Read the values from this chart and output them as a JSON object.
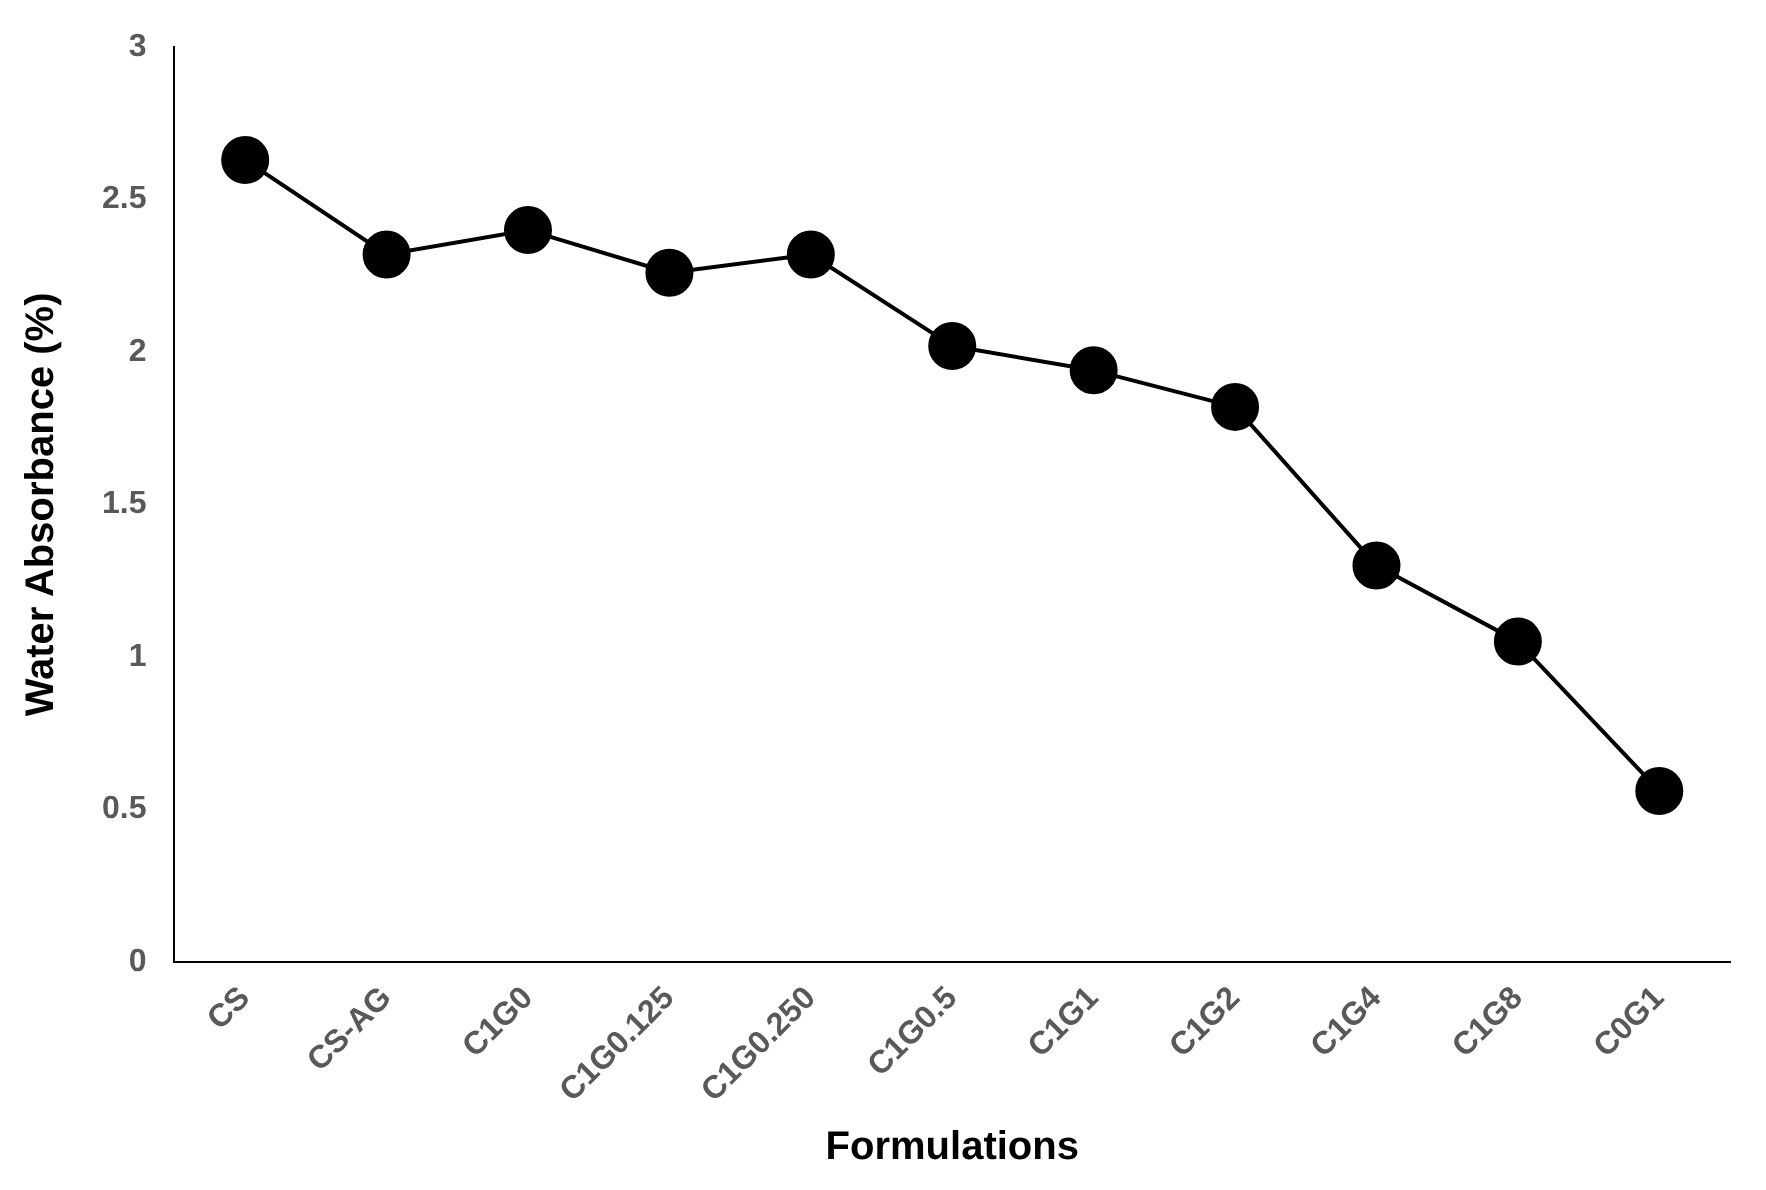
{
  "chart_data": {
    "type": "line",
    "xlabel": "Formulations",
    "ylabel": "Water Absorbance (%)",
    "categories": [
      "CS",
      "CS-AG",
      "C1G0",
      "C1G0.125",
      "C1G0.250",
      "C1G0.5",
      "C1G1",
      "C1G2",
      "C1G4",
      "C1G8",
      "C0G1"
    ],
    "series": [
      {
        "color": "#000000",
        "values": [
          2.63,
          2.32,
          2.4,
          2.26,
          2.32,
          2.02,
          1.94,
          1.82,
          1.3,
          1.05,
          0.56
        ]
      }
    ],
    "ylim": [
      0,
      3
    ],
    "yticks": [
      0,
      0.5,
      1,
      1.5,
      2,
      2.5,
      3
    ],
    "grid": false,
    "legend": false,
    "marker": "circle",
    "line_style": "solid"
  }
}
